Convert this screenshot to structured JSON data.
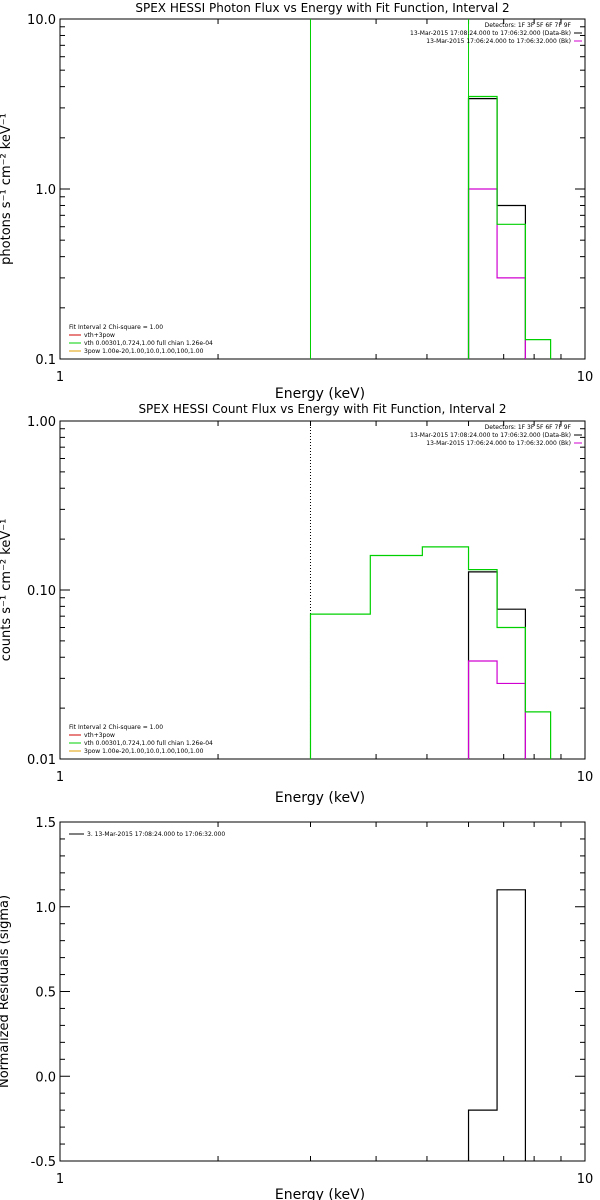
{
  "colors": {
    "black": "#000000",
    "green": "#00d000",
    "magenta": "#d000d0",
    "red": "#d00000",
    "orange": "#e0a000"
  },
  "chart_data": [
    {
      "type": "line",
      "title": "SPEX HESSI Photon Flux vs Energy with Fit Function, Interval 2",
      "xlabel": "Energy (keV)",
      "ylabel": "photons s⁻¹ cm⁻² keV⁻¹",
      "xscale": "log",
      "yscale": "log",
      "xlim": [
        1,
        10
      ],
      "ylim": [
        0.1,
        10
      ],
      "xtick_labels": [
        "1",
        "10"
      ],
      "ytick_labels": [
        "0.1",
        "1.0",
        "10.0"
      ],
      "legend_top_right": [
        "Detectors: 1F 3F 5F 6F 7F 9F",
        "13-Mar-2015 17:08:24.000 to 17:06:32.000 (Data-Bk)",
        "13-Mar-2015 17:06:24.000 to 17:06:32.000 (Bk)"
      ],
      "legend_bottom_left": [
        "Fit Interval 2    Chi-square = 1.00",
        "vth+3pow",
        "vth 0.00301,0.724,1.00  full chian 1.26e-04",
        "3pow 1.00e-20,1.00,10.0,1.00,100,1.00"
      ],
      "series": [
        {
          "name": "Data-Bk",
          "color": "#000000",
          "edges": [
            6.0,
            6.8,
            7.7
          ],
          "values": [
            3.4,
            0.8
          ]
        },
        {
          "name": "Bk",
          "color": "#d000d0",
          "edges": [
            6.0,
            6.8,
            7.7
          ],
          "values": [
            1.0,
            0.3
          ]
        },
        {
          "name": "vth 0.00301,0.724,1.00  full chian 1.26e-04",
          "color": "#00d000",
          "edges": [
            6.0,
            6.8,
            7.7,
            8.6
          ],
          "values": [
            3.5,
            0.62,
            0.13
          ]
        }
      ],
      "vlines": [
        {
          "x": 3.0,
          "color": "#00d000",
          "style": "solid"
        },
        {
          "x": 6.0,
          "color": "#00d000",
          "style": "solid"
        }
      ]
    },
    {
      "type": "line",
      "title": "SPEX HESSI Count Flux vs Energy with Fit Function, Interval 2",
      "xlabel": "Energy (keV)",
      "ylabel": "counts s⁻¹ cm⁻² keV⁻¹",
      "xscale": "log",
      "yscale": "log",
      "xlim": [
        1,
        10
      ],
      "ylim": [
        0.01,
        1
      ],
      "xtick_labels": [
        "1",
        "10"
      ],
      "ytick_labels": [
        "0.01",
        "0.10",
        "1.00"
      ],
      "legend_top_right": [
        "Detectors: 1F 3F 5F 6F 7F 9F",
        "13-Mar-2015 17:08:24.000 to 17:06:32.000 (Data-Bk)",
        "13-Mar-2015 17:06:24.000 to 17:06:32.000 (Bk)"
      ],
      "legend_bottom_left": [
        "Fit Interval 2    Chi-square = 1.00",
        "vth+3pow",
        "vth 0.00301,0.724,1.00  full chian 1.26e-04",
        "3pow 1.00e-20,1.00,10.0,1.00,100,1.00"
      ],
      "series": [
        {
          "name": "Data-Bk",
          "color": "#000000",
          "edges": [
            6.0,
            6.8,
            7.7
          ],
          "values": [
            0.128,
            0.077
          ]
        },
        {
          "name": "Bk",
          "color": "#d000d0",
          "edges": [
            6.0,
            6.8,
            7.7
          ],
          "values": [
            0.038,
            0.028
          ]
        },
        {
          "name": "vth 0.00301,0.724,1.00  full chian 1.26e-04",
          "color": "#00d000",
          "edges": [
            3.0,
            3.9,
            4.9,
            6.0,
            6.8,
            7.7,
            8.6
          ],
          "values": [
            0.072,
            0.16,
            0.18,
            0.132,
            0.06,
            0.019
          ]
        }
      ],
      "vlines": [
        {
          "x": 3.0,
          "color": "#000000",
          "style": "dotted"
        }
      ]
    },
    {
      "type": "line",
      "title": "",
      "xlabel": "Energy (keV)",
      "ylabel": "Normalized Residuals (sigma)",
      "xscale": "log",
      "yscale": "linear",
      "xlim": [
        1,
        10
      ],
      "ylim": [
        -0.5,
        1.5
      ],
      "xtick_labels": [
        "1",
        "10"
      ],
      "ytick_labels": [
        "-0.5",
        "0.0",
        "0.5",
        "1.0",
        "1.5"
      ],
      "legend_top_left": [
        "3. 13-Mar-2015 17:08:24.000 to 17:06:32.000"
      ],
      "series": [
        {
          "name": "3. 13-Mar-2015 17:08:24.000 to 17:06:32.000",
          "color": "#000000",
          "edges": [
            6.0,
            6.8,
            7.7
          ],
          "values": [
            -0.2,
            1.1
          ]
        }
      ]
    }
  ]
}
